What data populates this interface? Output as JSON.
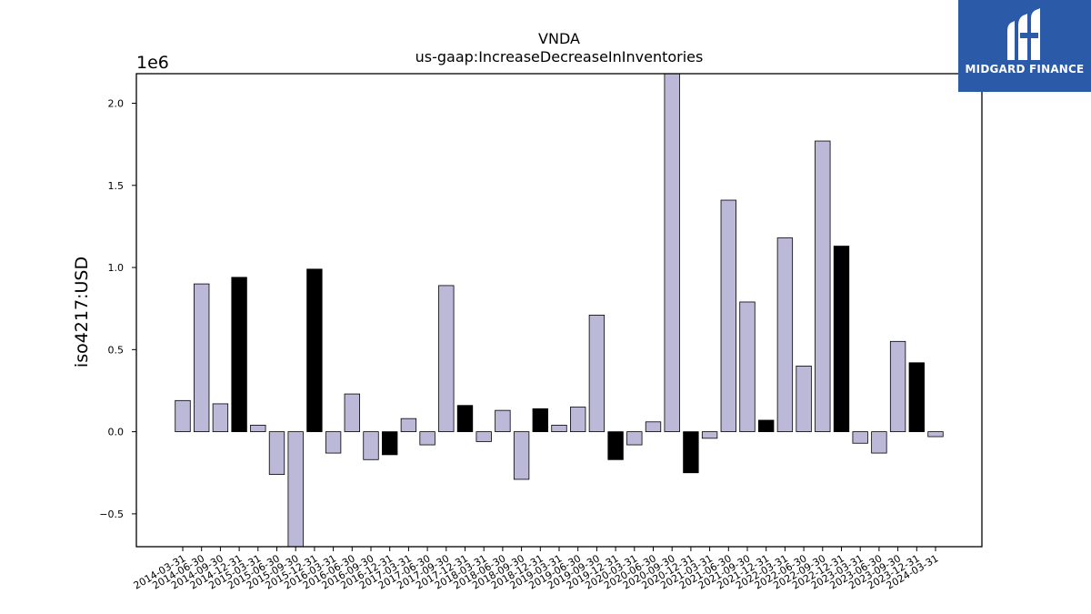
{
  "chart_data": {
    "type": "bar",
    "title": "VNDA",
    "subtitle": "us-gaap:IncreaseDecreaseInInventories",
    "ylabel": "iso4217:USD",
    "xlabel": "",
    "scale_label": "1e6",
    "ylim": [
      -0.7,
      2.18
    ],
    "yticks": [
      -0.5,
      0.0,
      0.5,
      1.0,
      1.5,
      2.0
    ],
    "ytick_labels": [
      "−0.5",
      "0.0",
      "0.5",
      "1.0",
      "1.5",
      "2.0"
    ],
    "grid": false,
    "colors": {
      "default": "#bcb8d8",
      "highlight": "#000000",
      "edge": "#000000"
    },
    "categories": [
      "2014-03-31",
      "2014-06-30",
      "2014-09-30",
      "2014-12-31",
      "2015-03-31",
      "2015-06-30",
      "2015-09-30",
      "2015-12-31",
      "2016-03-31",
      "2016-06-30",
      "2016-09-30",
      "2016-12-31",
      "2017-03-31",
      "2017-06-30",
      "2017-09-30",
      "2017-12-31",
      "2018-03-31",
      "2018-06-30",
      "2018-09-30",
      "2018-12-31",
      "2019-03-31",
      "2019-06-30",
      "2019-09-30",
      "2019-12-31",
      "2020-03-31",
      "2020-06-30",
      "2020-09-30",
      "2020-12-31",
      "2021-03-31",
      "2021-06-30",
      "2021-09-30",
      "2021-12-31",
      "2022-03-31",
      "2022-06-30",
      "2022-09-30",
      "2022-12-31",
      "2023-03-31",
      "2023-06-30",
      "2023-09-30",
      "2023-12-31",
      "2024-03-31"
    ],
    "values": [
      0.19,
      0.9,
      0.17,
      0.94,
      0.04,
      -0.26,
      -0.72,
      0.99,
      -0.13,
      0.23,
      -0.17,
      -0.14,
      0.08,
      -0.08,
      0.89,
      0.16,
      -0.06,
      0.13,
      -0.29,
      0.14,
      0.04,
      0.15,
      0.71,
      -0.17,
      -0.08,
      0.06,
      2.22,
      -0.25,
      -0.04,
      1.41,
      0.79,
      0.07,
      1.18,
      0.4,
      1.77,
      1.13,
      -0.07,
      -0.13,
      0.55,
      0.42,
      -0.03
    ],
    "highlighted": [
      "2014-12-31",
      "2015-12-31",
      "2016-12-31",
      "2017-12-31",
      "2018-12-31",
      "2019-12-31",
      "2020-12-31",
      "2021-12-31",
      "2022-12-31",
      "2023-12-31"
    ]
  },
  "logo": {
    "text": "MIDGARD FINANCE",
    "background": "#2a5aa8"
  }
}
